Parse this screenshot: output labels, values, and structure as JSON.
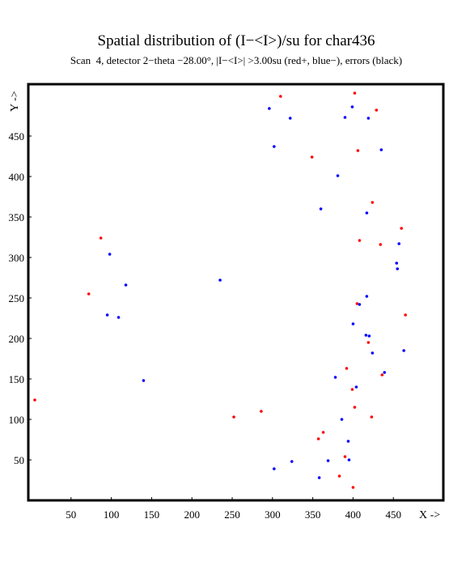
{
  "chart_data": {
    "type": "scatter",
    "title": "Spatial distribution of (I−<I>)/su for char436",
    "subtitle": "Scan  4, detector 2−theta −28.00°, |I−<I>| >3.00su (red+, blue−), errors (black)",
    "x_label": "X ->",
    "y_label": "Y ->",
    "xlim": [
      -3,
      512
    ],
    "ylim": [
      0,
      514
    ],
    "xticks": [
      50,
      100,
      150,
      200,
      250,
      300,
      350,
      400,
      450
    ],
    "yticks": [
      50,
      100,
      150,
      200,
      250,
      300,
      350,
      400,
      450
    ],
    "series": [
      {
        "color": "#ff0000",
        "x": [
          310,
          402,
          429,
          349,
          406,
          424,
          460,
          434,
          408,
          87,
          72,
          405,
          465,
          419,
          392,
          436,
          399,
          402,
          423,
          252,
          286,
          363,
          357,
          390,
          383,
          400,
          5
        ],
        "values": [
          499,
          503,
          482,
          424,
          432,
          368,
          336,
          316,
          321,
          324,
          255,
          243,
          229,
          195,
          163,
          155,
          137,
          115,
          103,
          103,
          110,
          84,
          76,
          54,
          30,
          16,
          124
        ]
      },
      {
        "color": "#0000ff",
        "x": [
          296,
          322,
          399,
          390,
          419,
          302,
          435,
          381,
          360,
          417,
          457,
          454,
          455,
          98,
          118,
          235,
          417,
          408,
          95,
          109,
          400,
          416,
          420,
          424,
          463,
          439,
          378,
          404,
          140,
          386,
          394,
          369,
          395,
          324,
          302,
          358
        ],
        "values": [
          484,
          472,
          486,
          473,
          472,
          437,
          433,
          401,
          360,
          355,
          317,
          293,
          286,
          304,
          266,
          272,
          252,
          242,
          229,
          226,
          218,
          204,
          203,
          182,
          185,
          158,
          152,
          140,
          148,
          100,
          73,
          49,
          50,
          48,
          39,
          28
        ]
      }
    ]
  }
}
